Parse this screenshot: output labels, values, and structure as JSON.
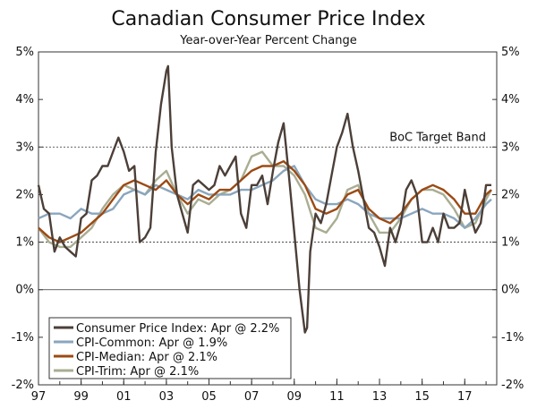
{
  "chart_data": {
    "type": "line",
    "title": "Canadian Consumer Price Index",
    "subtitle": "Year-over-Year Percent Change",
    "xlabel": "",
    "ylabel": "",
    "x_tick_labels": [
      "97",
      "99",
      "01",
      "03",
      "05",
      "07",
      "09",
      "11",
      "13",
      "15",
      "17"
    ],
    "x_tick_years": [
      1997,
      1999,
      2001,
      2003,
      2005,
      2007,
      2009,
      2011,
      2013,
      2015,
      2017
    ],
    "xlim": [
      1997.0,
      2018.5
    ],
    "ylim": [
      -2,
      5
    ],
    "y_ticks": [
      -2,
      -1,
      0,
      1,
      2,
      3,
      4,
      5
    ],
    "y_tick_labels": [
      "-2%",
      "-1%",
      "0%",
      "1%",
      "2%",
      "3%",
      "4%",
      "5%"
    ],
    "grid": false,
    "legend_position": "bottom-left",
    "annotations": [
      {
        "text": "BoC Target Band",
        "y_lines": [
          1,
          3
        ]
      }
    ],
    "series": [
      {
        "name": "Consumer Price Index: Apr @ 2.2%",
        "color": "#4b3f38",
        "x": [
          1997.0,
          1997.25,
          1997.5,
          1997.75,
          1998.0,
          1998.25,
          1998.5,
          1998.75,
          1999.0,
          1999.25,
          1999.5,
          1999.75,
          2000.0,
          2000.25,
          2000.5,
          2000.75,
          2001.0,
          2001.25,
          2001.5,
          2001.75,
          2002.0,
          2002.25,
          2002.5,
          2002.75,
          2003.0,
          2003.08,
          2003.25,
          2003.5,
          2003.75,
          2004.0,
          2004.25,
          2004.5,
          2004.75,
          2005.0,
          2005.25,
          2005.5,
          2005.75,
          2006.0,
          2006.25,
          2006.5,
          2006.75,
          2007.0,
          2007.25,
          2007.5,
          2007.75,
          2008.0,
          2008.25,
          2008.5,
          2008.75,
          2009.0,
          2009.25,
          2009.5,
          2009.6,
          2009.75,
          2010.0,
          2010.25,
          2010.5,
          2010.75,
          2011.0,
          2011.25,
          2011.5,
          2011.75,
          2012.0,
          2012.25,
          2012.5,
          2012.75,
          2013.0,
          2013.25,
          2013.5,
          2013.75,
          2014.0,
          2014.25,
          2014.5,
          2014.75,
          2015.0,
          2015.25,
          2015.5,
          2015.75,
          2016.0,
          2016.25,
          2016.5,
          2016.75,
          2017.0,
          2017.25,
          2017.5,
          2017.75,
          2018.0,
          2018.25
        ],
        "values": [
          2.2,
          1.7,
          1.6,
          0.8,
          1.1,
          0.9,
          0.8,
          0.7,
          1.5,
          1.6,
          2.3,
          2.4,
          2.6,
          2.6,
          2.9,
          3.2,
          2.9,
          2.5,
          2.6,
          1.0,
          1.1,
          1.3,
          2.9,
          3.9,
          4.6,
          4.7,
          3.0,
          2.0,
          1.6,
          1.2,
          2.2,
          2.3,
          2.2,
          2.1,
          2.2,
          2.6,
          2.4,
          2.6,
          2.8,
          1.6,
          1.3,
          2.2,
          2.2,
          2.4,
          1.8,
          2.5,
          3.1,
          3.5,
          2.4,
          1.2,
          0.0,
          -0.9,
          -0.8,
          0.8,
          1.6,
          1.4,
          1.8,
          2.4,
          3.0,
          3.3,
          3.7,
          3.0,
          2.5,
          1.9,
          1.3,
          1.2,
          0.9,
          0.5,
          1.3,
          1.0,
          1.4,
          2.1,
          2.3,
          2.0,
          1.0,
          1.0,
          1.3,
          1.0,
          1.6,
          1.3,
          1.3,
          1.4,
          2.1,
          1.6,
          1.2,
          1.4,
          2.2,
          2.2
        ]
      },
      {
        "name": "CPI-Common: Apr @ 1.9%",
        "color": "#8aa6bd",
        "x": [
          1997.0,
          1997.5,
          1998.0,
          1998.5,
          1999.0,
          1999.5,
          2000.0,
          2000.5,
          2001.0,
          2001.5,
          2002.0,
          2002.5,
          2003.0,
          2003.5,
          2004.0,
          2004.5,
          2005.0,
          2005.5,
          2006.0,
          2006.5,
          2007.0,
          2007.5,
          2008.0,
          2008.5,
          2009.0,
          2009.5,
          2010.0,
          2010.5,
          2011.0,
          2011.5,
          2012.0,
          2012.5,
          2013.0,
          2013.5,
          2014.0,
          2014.5,
          2015.0,
          2015.5,
          2016.0,
          2016.5,
          2017.0,
          2017.5,
          2018.0,
          2018.25
        ],
        "values": [
          1.5,
          1.6,
          1.6,
          1.5,
          1.7,
          1.6,
          1.6,
          1.7,
          2.0,
          2.1,
          2.0,
          2.2,
          2.1,
          2.0,
          1.9,
          2.1,
          2.0,
          2.0,
          2.0,
          2.1,
          2.1,
          2.2,
          2.3,
          2.5,
          2.6,
          2.2,
          1.9,
          1.8,
          1.8,
          1.9,
          1.8,
          1.6,
          1.5,
          1.5,
          1.5,
          1.6,
          1.7,
          1.6,
          1.6,
          1.5,
          1.3,
          1.5,
          1.8,
          1.9
        ]
      },
      {
        "name": "CPI-Median: Apr @ 2.1%",
        "color": "#9c4a13",
        "x": [
          1997.0,
          1997.5,
          1998.0,
          1998.5,
          1999.0,
          1999.5,
          2000.0,
          2000.5,
          2001.0,
          2001.5,
          2002.0,
          2002.5,
          2003.0,
          2003.5,
          2004.0,
          2004.5,
          2005.0,
          2005.5,
          2006.0,
          2006.5,
          2007.0,
          2007.5,
          2008.0,
          2008.5,
          2009.0,
          2009.5,
          2010.0,
          2010.5,
          2011.0,
          2011.5,
          2012.0,
          2012.5,
          2013.0,
          2013.5,
          2014.0,
          2014.5,
          2015.0,
          2015.5,
          2016.0,
          2016.5,
          2017.0,
          2017.5,
          2018.0,
          2018.25
        ],
        "values": [
          1.3,
          1.1,
          1.0,
          1.1,
          1.2,
          1.4,
          1.6,
          1.9,
          2.2,
          2.3,
          2.2,
          2.1,
          2.3,
          2.0,
          1.8,
          2.0,
          1.9,
          2.1,
          2.1,
          2.3,
          2.5,
          2.6,
          2.6,
          2.7,
          2.5,
          2.2,
          1.7,
          1.6,
          1.7,
          2.0,
          2.1,
          1.7,
          1.5,
          1.4,
          1.6,
          1.9,
          2.1,
          2.2,
          2.1,
          1.9,
          1.6,
          1.6,
          2.0,
          2.1
        ]
      },
      {
        "name": "CPI-Trim: Apr @ 2.1%",
        "color": "#a9ad92",
        "x": [
          1997.0,
          1997.5,
          1998.0,
          1998.5,
          1999.0,
          1999.5,
          2000.0,
          2000.5,
          2001.0,
          2001.5,
          2002.0,
          2002.5,
          2003.0,
          2003.5,
          2004.0,
          2004.5,
          2005.0,
          2005.5,
          2006.0,
          2006.5,
          2007.0,
          2007.5,
          2008.0,
          2008.5,
          2009.0,
          2009.5,
          2010.0,
          2010.5,
          2011.0,
          2011.5,
          2012.0,
          2012.5,
          2013.0,
          2013.5,
          2014.0,
          2014.5,
          2015.0,
          2015.5,
          2016.0,
          2016.5,
          2017.0,
          2017.5,
          2018.0,
          2018.25
        ],
        "values": [
          1.3,
          1.0,
          0.9,
          0.9,
          1.1,
          1.3,
          1.7,
          2.0,
          2.2,
          2.1,
          2.0,
          2.3,
          2.5,
          2.0,
          1.6,
          1.9,
          1.8,
          2.0,
          2.1,
          2.3,
          2.8,
          2.9,
          2.6,
          2.6,
          2.4,
          2.0,
          1.3,
          1.2,
          1.5,
          2.1,
          2.2,
          1.6,
          1.2,
          1.2,
          1.5,
          1.9,
          2.1,
          2.1,
          2.0,
          1.7,
          1.3,
          1.4,
          1.9,
          2.1
        ]
      }
    ]
  }
}
